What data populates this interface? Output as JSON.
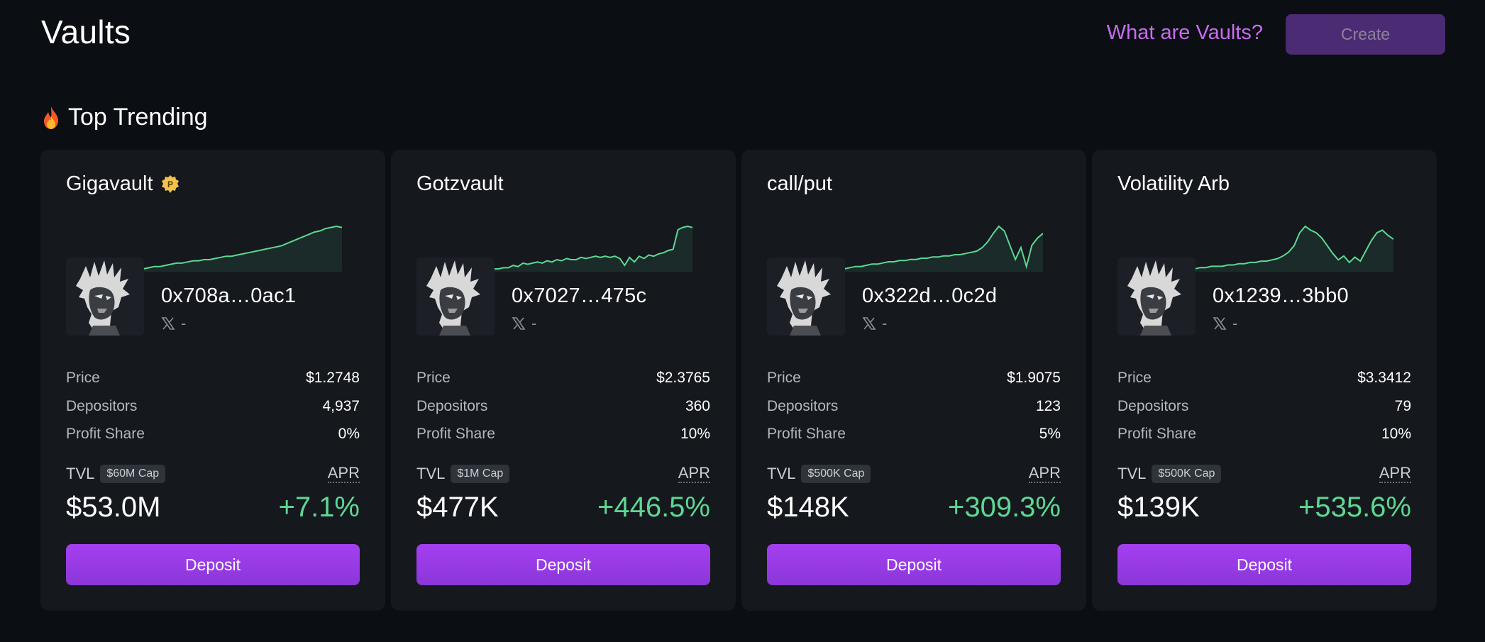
{
  "header": {
    "title": "Vaults",
    "what_link": "What are Vaults?",
    "create_label": "Create"
  },
  "section": {
    "title": "Top Trending",
    "icon": "fire-icon"
  },
  "labels": {
    "price": "Price",
    "depositors": "Depositors",
    "profit_share": "Profit Share",
    "tvl": "TVL",
    "apr": "APR",
    "deposit": "Deposit",
    "social_dash": "-"
  },
  "colors": {
    "accent": "#a53ff0",
    "positive": "#5dd893",
    "link": "#c66cf0",
    "card_bg": "#15181d",
    "page_bg": "#0b0e12"
  },
  "vaults": [
    {
      "name": "Gigavault",
      "badge": "P",
      "address": "0x708a…0ac1",
      "price": "$1.2748",
      "depositors": "4,937",
      "profit_share": "0%",
      "cap": "$60M Cap",
      "tvl": "$53.0M",
      "apr": "+7.1%",
      "sparkline": [
        10,
        11,
        12,
        12,
        13,
        14,
        15,
        15,
        16,
        17,
        17,
        18,
        18,
        19,
        20,
        21,
        21,
        22,
        23,
        24,
        25,
        26,
        27,
        28,
        29,
        30,
        32,
        34,
        36,
        38,
        40,
        42,
        43,
        45,
        46,
        47,
        46
      ]
    },
    {
      "name": "Gotzvault",
      "address": "0x7027…475c",
      "price": "$2.3765",
      "depositors": "360",
      "profit_share": "10%",
      "cap": "$1M Cap",
      "tvl": "$477K",
      "apr": "+446.5%",
      "sparkline": [
        10,
        10,
        11,
        11,
        13,
        12,
        15,
        14,
        15,
        16,
        15,
        17,
        16,
        18,
        17,
        19,
        18,
        18,
        20,
        19,
        20,
        21,
        20,
        21,
        20,
        21,
        19,
        13,
        20,
        16,
        21,
        19,
        22,
        21,
        23,
        24,
        26,
        27,
        44,
        46,
        47,
        46
      ]
    },
    {
      "name": "call/put",
      "address": "0x322d…0c2d",
      "price": "$1.9075",
      "depositors": "123",
      "profit_share": "5%",
      "cap": "$500K Cap",
      "tvl": "$148K",
      "apr": "+309.3%",
      "sparkline": [
        10,
        11,
        12,
        12,
        13,
        14,
        14,
        15,
        16,
        16,
        17,
        17,
        18,
        18,
        19,
        19,
        20,
        20,
        21,
        21,
        22,
        22,
        23,
        24,
        25,
        28,
        33,
        40,
        46,
        42,
        30,
        18,
        28,
        12,
        30,
        36,
        40
      ]
    },
    {
      "name": "Volatility Arb",
      "address": "0x1239…3bb0",
      "price": "$3.3412",
      "depositors": "79",
      "profit_share": "10%",
      "cap": "$500K Cap",
      "tvl": "$139K",
      "apr": "+535.6%",
      "sparkline": [
        10,
        11,
        11,
        12,
        12,
        12,
        13,
        13,
        14,
        14,
        15,
        15,
        16,
        16,
        17,
        18,
        20,
        23,
        28,
        38,
        43,
        40,
        38,
        34,
        28,
        22,
        17,
        20,
        15,
        19,
        16,
        24,
        32,
        38,
        40,
        36,
        33
      ]
    }
  ]
}
